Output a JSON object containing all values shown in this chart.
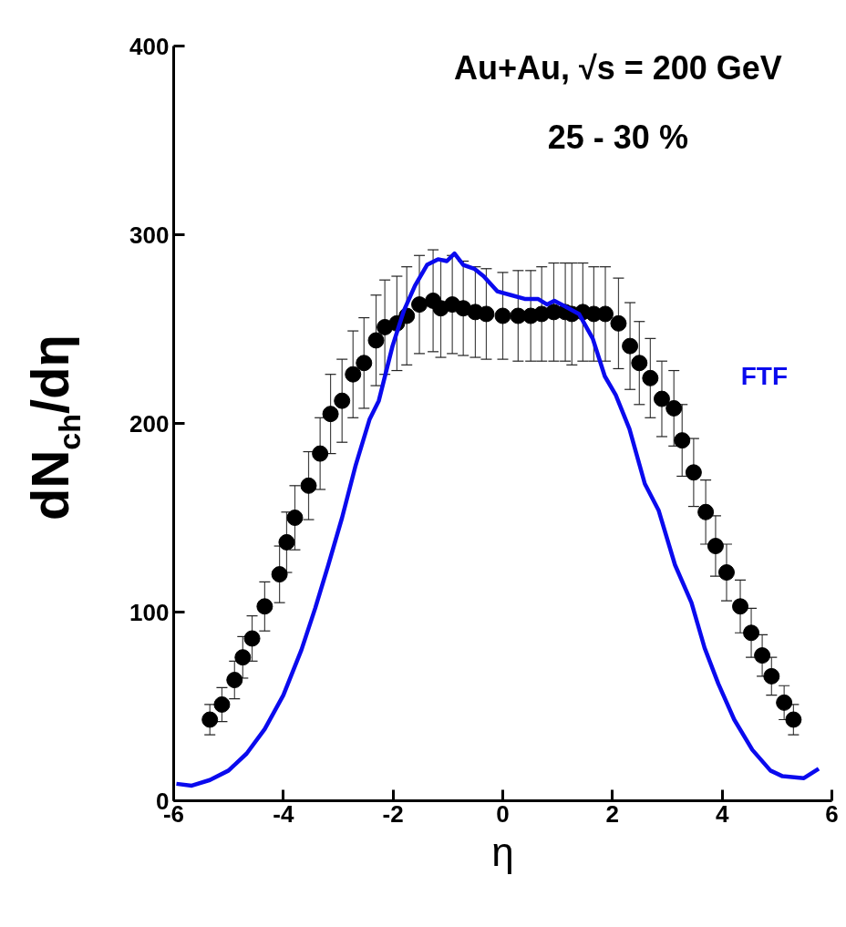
{
  "chart_data": {
    "type": "scatter",
    "title": "Au+Au, √s = 200 GeV",
    "subtitle": "25 - 30 %",
    "xlabel": "η",
    "ylabel": "dN$_{ch}$/dη",
    "xlim": [
      -6,
      6
    ],
    "ylim": [
      0,
      400
    ],
    "xticks": [
      -6,
      -4,
      -2,
      0,
      2,
      4,
      6
    ],
    "yticks": [
      0,
      100,
      200,
      300,
      400
    ],
    "grid": false,
    "series": [
      {
        "marker": "circle",
        "color": "#000000",
        "x": [
          -5.34,
          -5.12,
          -4.89,
          -4.74,
          -4.57,
          -4.34,
          -4.07,
          -3.94,
          -3.79,
          -3.54,
          -3.33,
          -3.14,
          -2.93,
          -2.73,
          -2.53,
          -2.31,
          -2.15,
          -1.93,
          -1.75,
          -1.52,
          -1.27,
          -1.13,
          -0.92,
          -0.72,
          -0.5,
          -0.3,
          0.0,
          0.28,
          0.51,
          0.71,
          0.93,
          1.14,
          1.26,
          1.46,
          1.66,
          1.87,
          2.11,
          2.32,
          2.49,
          2.69,
          2.9,
          3.12,
          3.27,
          3.48,
          3.7,
          3.88,
          4.08,
          4.33,
          4.53,
          4.73,
          4.9,
          5.13,
          5.3
        ],
        "values": [
          43,
          51,
          64,
          76,
          86,
          103,
          120,
          137,
          150,
          167,
          184,
          205,
          212,
          226,
          232,
          244,
          251,
          253,
          257,
          263,
          265,
          261,
          263,
          261,
          259,
          258,
          257,
          257,
          257,
          258,
          259,
          259,
          258,
          259,
          258,
          258,
          253,
          241,
          232,
          224,
          213,
          208,
          191,
          174,
          153,
          135,
          121,
          103,
          89,
          77,
          66,
          52,
          43
        ],
        "errors": [
          8,
          9,
          10,
          11,
          12,
          13,
          15,
          16,
          17,
          18,
          19,
          21,
          22,
          23,
          24,
          24,
          25,
          25,
          26,
          26,
          27,
          26,
          26,
          25,
          24,
          24,
          23,
          24,
          24,
          25,
          26,
          26,
          27,
          26,
          25,
          25,
          24,
          23,
          22,
          21,
          20,
          20,
          19,
          18,
          17,
          16,
          15,
          14,
          13,
          11,
          10,
          9,
          8
        ]
      },
      {
        "type": "line",
        "name": "FTF",
        "color": "#0a0aee",
        "line_style": "solid",
        "x": [
          -5.95,
          -5.67,
          -5.34,
          -5.0,
          -4.67,
          -4.34,
          -4.0,
          -3.67,
          -3.42,
          -3.18,
          -2.93,
          -2.68,
          -2.43,
          -2.26,
          -2.01,
          -1.8,
          -1.6,
          -1.38,
          -1.18,
          -1.02,
          -0.88,
          -0.72,
          -0.52,
          -0.35,
          -0.1,
          0.15,
          0.4,
          0.64,
          0.81,
          0.94,
          1.14,
          1.39,
          1.64,
          1.86,
          2.06,
          2.31,
          2.59,
          2.84,
          3.14,
          3.44,
          3.68,
          3.93,
          4.22,
          4.55,
          4.88,
          5.1,
          5.49,
          5.76
        ],
        "values": [
          9,
          8,
          11,
          16,
          25,
          38,
          56,
          80,
          102,
          125,
          150,
          178,
          202,
          212,
          241,
          260,
          273,
          284,
          287,
          286,
          290,
          284,
          282,
          278,
          270,
          268,
          266,
          266,
          263,
          265,
          262,
          258,
          245,
          225,
          215,
          197,
          168,
          154,
          125,
          105,
          81,
          62,
          43,
          27,
          16,
          13,
          12,
          17
        ]
      }
    ]
  }
}
